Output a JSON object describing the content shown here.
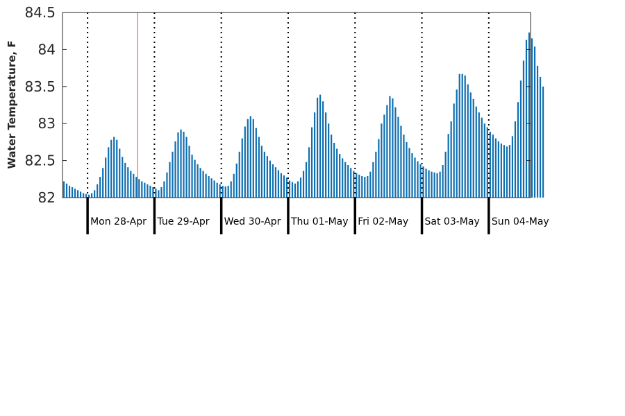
{
  "chart_data": {
    "type": "bar",
    "ylabel": "Water Temperature, F",
    "xlabel": "",
    "ylim": [
      82,
      84.5
    ],
    "yticks": [
      82,
      82.5,
      83,
      83.5,
      84,
      84.5
    ],
    "ytick_labels": [
      "82",
      "82.5",
      "83",
      "83.5",
      "84",
      "84.5"
    ],
    "grid": false,
    "x_units": "hours since Sun 27-Apr 15:00",
    "x_range": [
      0,
      167
    ],
    "day_boundaries": [
      9,
      33,
      57,
      81,
      105,
      129,
      153
    ],
    "day_labels": [
      "Mon 28-Apr",
      "Tue 29-Apr",
      "Wed 30-Apr",
      "Thu 01-May",
      "Fri 02-May",
      "Sat 03-May",
      "Sun 04-May"
    ],
    "current_time_marker": 27,
    "colors": {
      "bar": "#0f6fb0",
      "marker": "#ff5a5a",
      "axis": "#262626",
      "day_divider": "#000000"
    },
    "values": [
      82.22,
      82.19,
      82.16,
      82.14,
      82.12,
      82.1,
      82.08,
      82.06,
      82.05,
      82.04,
      82.06,
      82.1,
      82.18,
      82.28,
      82.4,
      82.54,
      82.68,
      82.78,
      82.82,
      82.78,
      82.66,
      82.55,
      82.47,
      82.41,
      82.36,
      82.32,
      82.28,
      82.25,
      82.22,
      82.2,
      82.18,
      82.16,
      82.14,
      82.12,
      82.1,
      82.14,
      82.22,
      82.34,
      82.48,
      82.62,
      82.76,
      82.88,
      82.92,
      82.89,
      82.82,
      82.7,
      82.58,
      82.51,
      82.45,
      82.4,
      82.36,
      82.32,
      82.29,
      82.26,
      82.23,
      82.2,
      82.18,
      82.16,
      82.15,
      82.16,
      82.22,
      82.32,
      82.46,
      82.62,
      82.8,
      82.96,
      83.06,
      83.1,
      83.06,
      82.94,
      82.82,
      82.7,
      82.62,
      82.56,
      82.5,
      82.45,
      82.41,
      82.37,
      82.33,
      82.3,
      82.27,
      82.23,
      82.21,
      82.19,
      82.22,
      82.27,
      82.36,
      82.48,
      82.68,
      82.95,
      83.15,
      83.35,
      83.39,
      83.3,
      83.15,
      83.0,
      82.85,
      82.74,
      82.66,
      82.59,
      82.53,
      82.48,
      82.44,
      82.4,
      82.36,
      82.33,
      82.31,
      82.29,
      82.28,
      82.29,
      82.35,
      82.48,
      82.62,
      82.79,
      83.0,
      83.12,
      83.25,
      83.37,
      83.34,
      83.22,
      83.09,
      82.97,
      82.85,
      82.75,
      82.67,
      82.6,
      82.54,
      82.49,
      82.45,
      82.42,
      82.39,
      82.37,
      82.35,
      82.34,
      82.33,
      82.35,
      82.44,
      82.62,
      82.86,
      83.03,
      83.27,
      83.46,
      83.67,
      83.67,
      83.65,
      83.53,
      83.42,
      83.33,
      83.23,
      83.15,
      83.08,
      83.0,
      82.95,
      82.89,
      82.85,
      82.8,
      82.76,
      82.73,
      82.71,
      82.69,
      82.71,
      82.83,
      83.03,
      83.29,
      83.58,
      83.85,
      84.13,
      84.23,
      84.15,
      84.04,
      83.78,
      83.63,
      83.5
    ]
  }
}
